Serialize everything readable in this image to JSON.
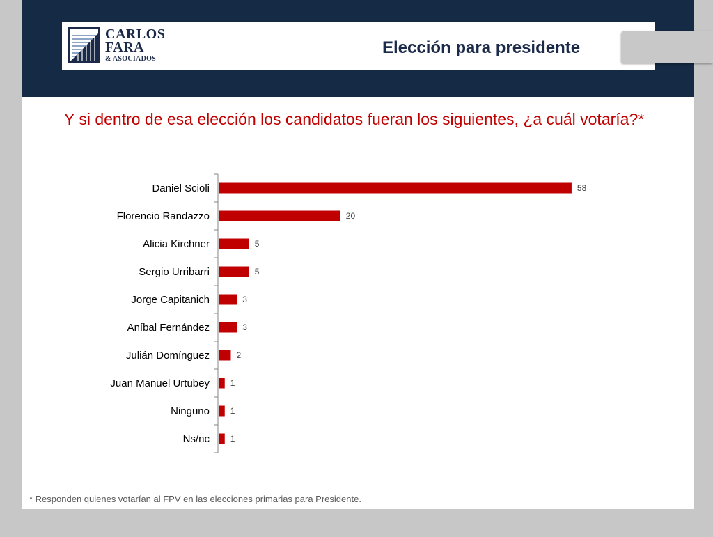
{
  "header": {
    "logo": {
      "line1": "CARLOS",
      "line2": "FARA",
      "line3": "& ASOCIADOS"
    },
    "title": "Elección para presidente"
  },
  "question": "Y si dentro de esa elección los candidatos fueran los siguientes, ¿a cuál votaría?*",
  "footnote": "* Responden quienes votarían al FPV en las elecciones primarias para Presidente.",
  "colors": {
    "bar": "#c00000",
    "header_band": "#152a44",
    "title": "#1a2a48"
  },
  "chart_data": {
    "type": "bar",
    "orientation": "horizontal",
    "categories": [
      "Daniel Scioli",
      "Florencio Randazzo",
      "Alicia Kirchner",
      "Sergio Urribarri",
      "Jorge Capitanich",
      "Aníbal Fernández",
      "Julián Domínguez",
      "Juan Manuel Urtubey",
      "Ninguno",
      "Ns/nc"
    ],
    "values": [
      58,
      20,
      5,
      5,
      3,
      3,
      2,
      1,
      1,
      1
    ],
    "data_labels": [
      "58",
      "20",
      "5",
      "5",
      "3",
      "3",
      "2",
      "1",
      "1",
      "1"
    ],
    "grid": false,
    "legend": "none"
  }
}
